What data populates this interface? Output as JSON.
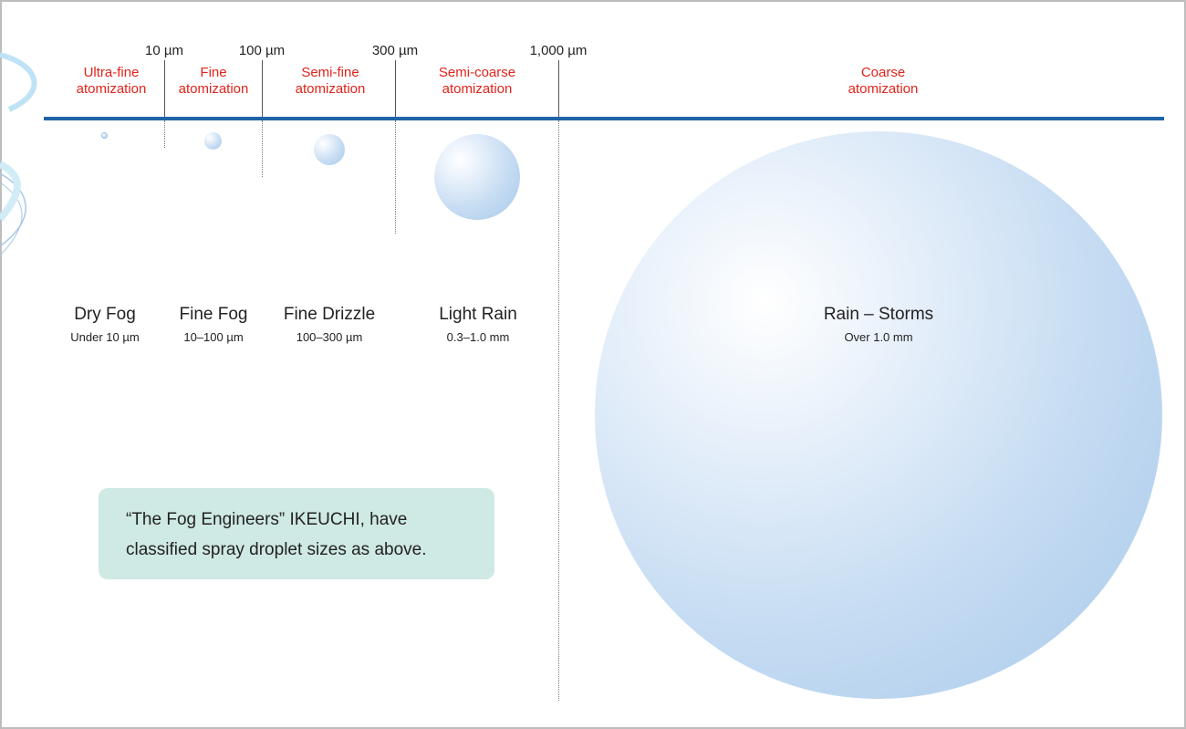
{
  "size_ticks": [
    "10 µm",
    "100 µm",
    "300 µm",
    "1,000 µm"
  ],
  "categories": [
    {
      "line1": "Ultra-fine",
      "line2": "atomization"
    },
    {
      "line1": "Fine",
      "line2": "atomization"
    },
    {
      "line1": "Semi-fine",
      "line2": "atomization"
    },
    {
      "line1": "Semi-coarse",
      "line2": "atomization"
    },
    {
      "line1": "Coarse",
      "line2": "atomization"
    }
  ],
  "droplets": [
    {
      "name": "Dry Fog",
      "range": "Under 10 µm"
    },
    {
      "name": "Fine Fog",
      "range": "10–100 µm"
    },
    {
      "name": "Fine Drizzle",
      "range": "100–300 µm"
    },
    {
      "name": "Light Rain",
      "range": "0.3–1.0 mm"
    },
    {
      "name": "Rain – Storms",
      "range": "Over 1.0 mm"
    }
  ],
  "note": {
    "line1": "“The Fog Engineers” IKEUCHI, have",
    "line2": "classified spray droplet sizes as above."
  },
  "colors": {
    "category_text": "#e2231a",
    "axis_line": "#1f63a8",
    "droplet": "#a9c9ea",
    "note_bg": "#cfe9e4"
  }
}
